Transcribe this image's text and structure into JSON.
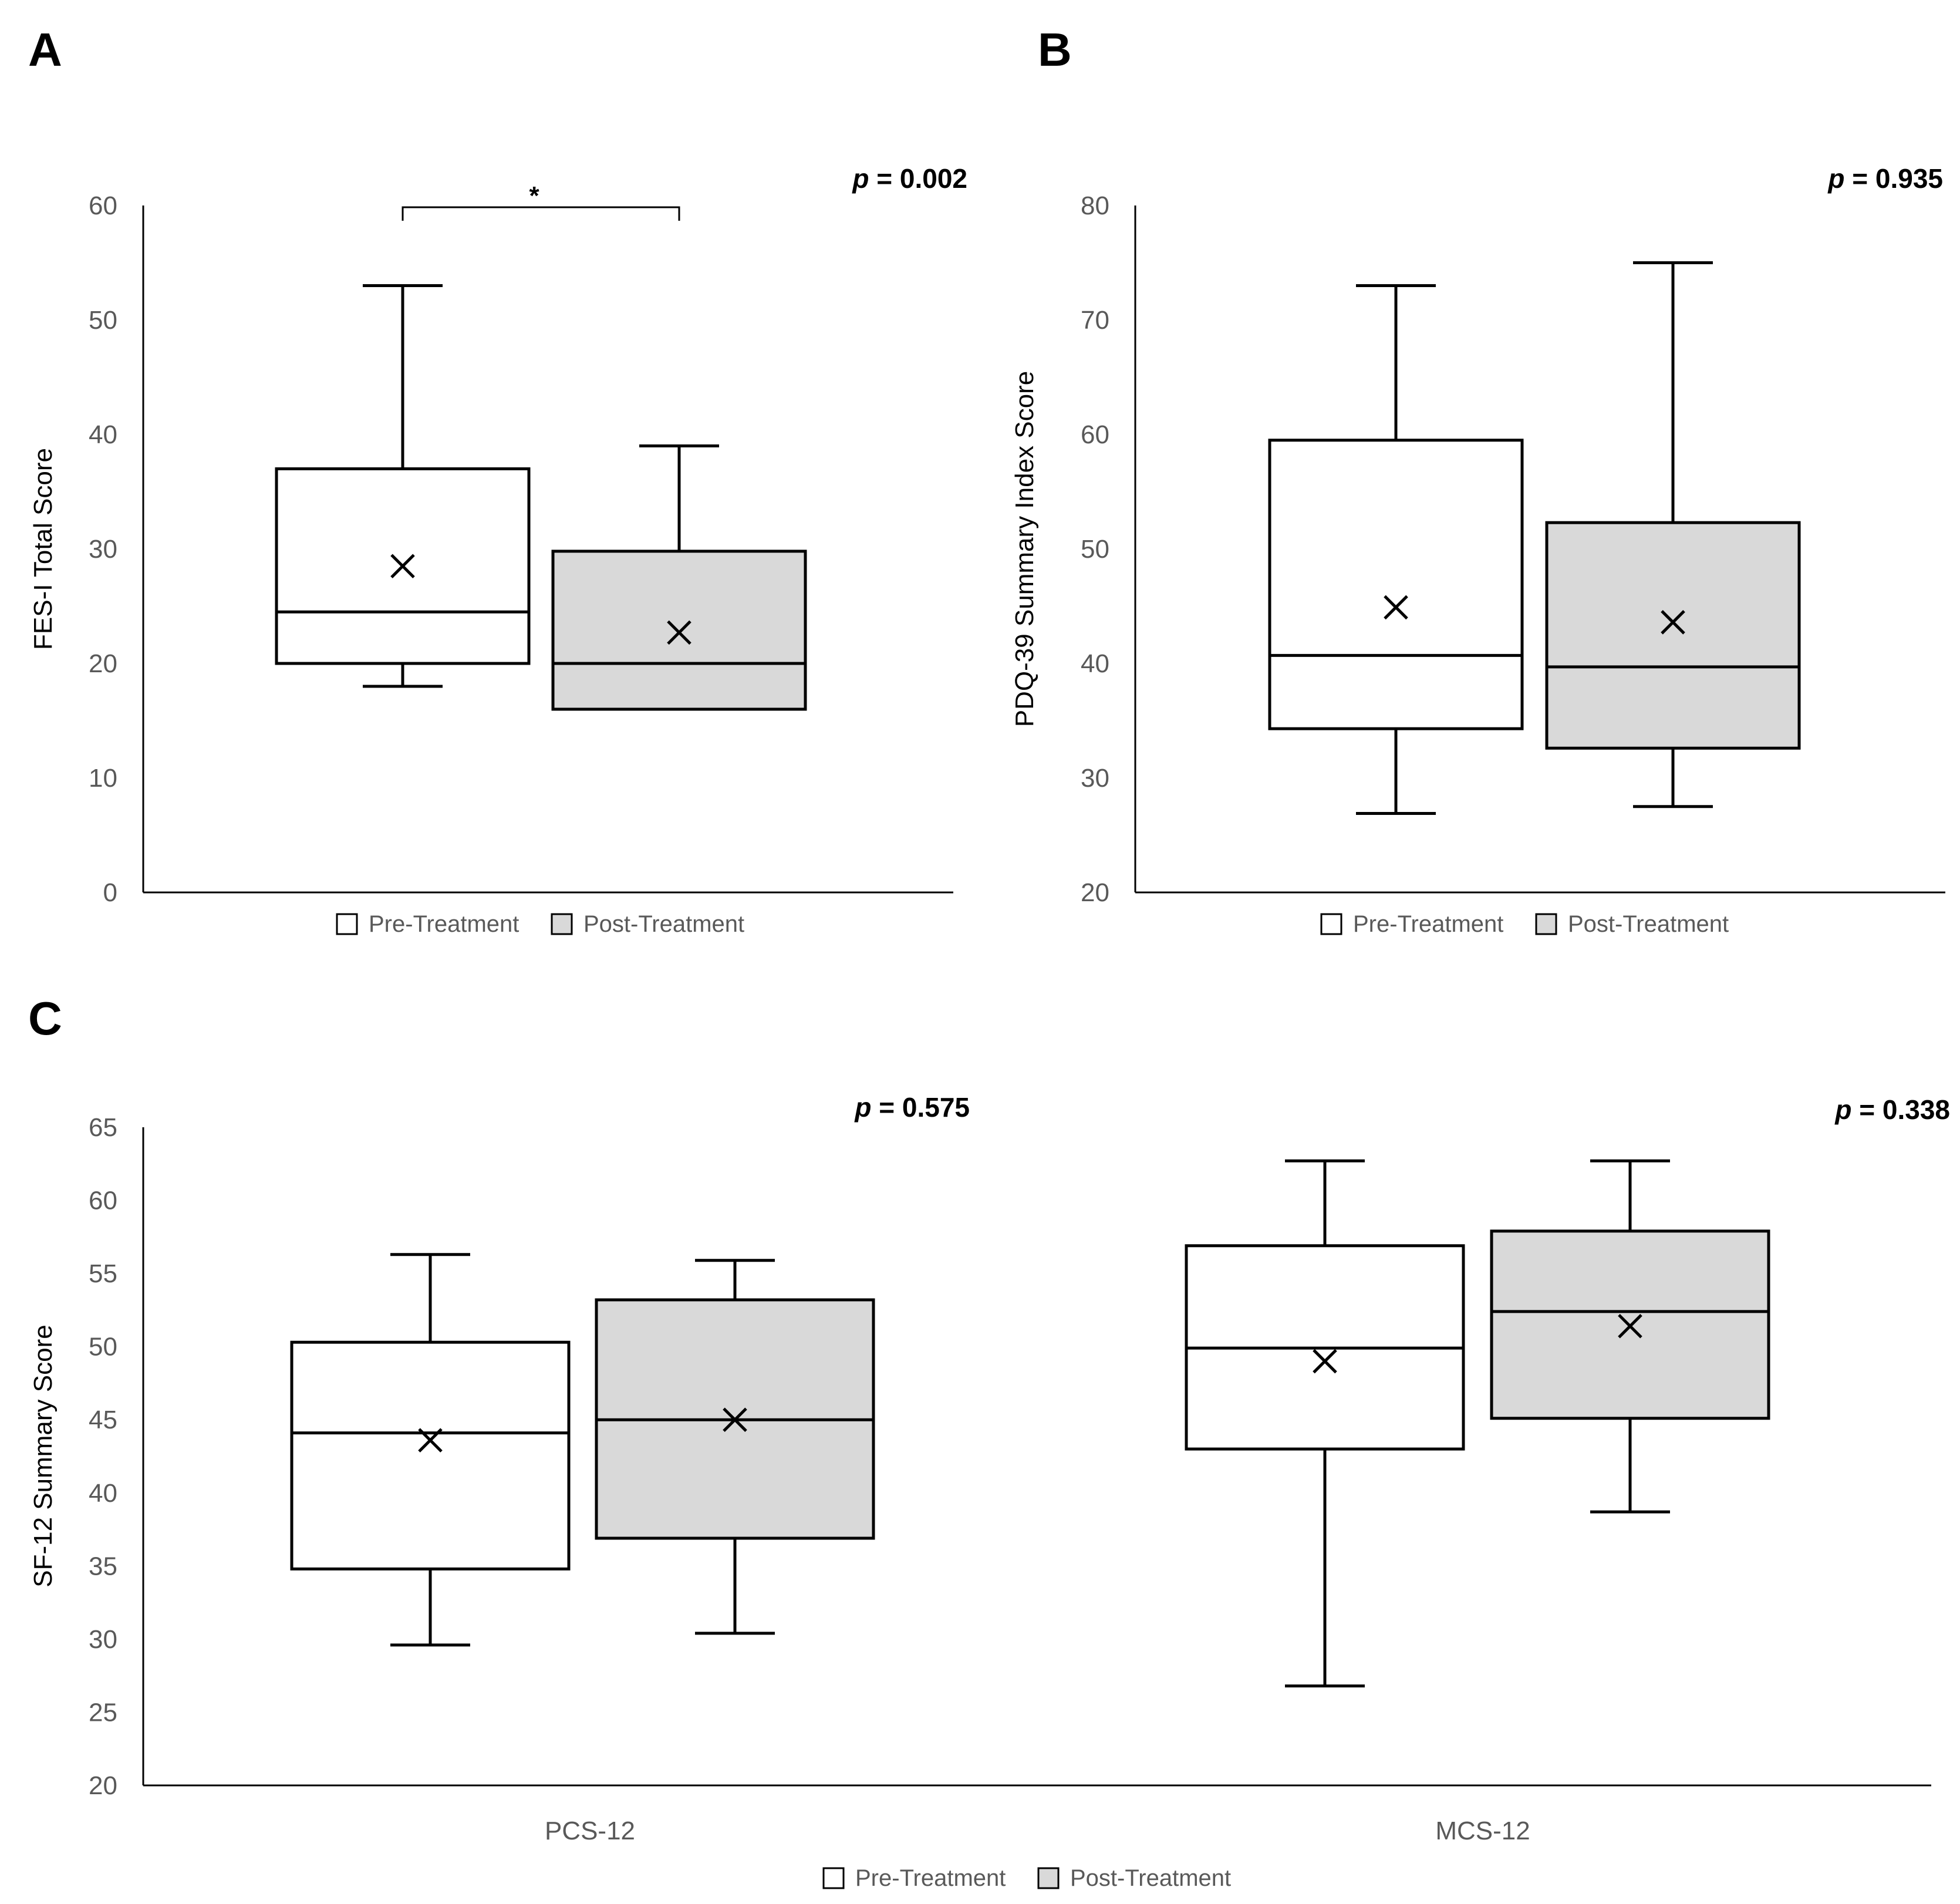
{
  "colors": {
    "pre": "#ffffff",
    "post": "#d9d9d9",
    "stroke": "#000000"
  },
  "legend": [
    "Pre-Treatment",
    "Post-Treatment"
  ],
  "chart_data": [
    {
      "panel": "A",
      "type": "boxplot",
      "ylabel": "FES-I Total Score",
      "ylim": [
        0,
        60
      ],
      "yticks": [
        0,
        10,
        20,
        30,
        40,
        50,
        60
      ],
      "pvalue": {
        "prefix": "p",
        "text": " = 0.002"
      },
      "significance": "*",
      "categories": [
        ""
      ],
      "series": [
        {
          "name": "Pre-Treatment",
          "boxes": [
            {
              "min": 18,
              "q1": 20,
              "median": 24.5,
              "q3": 37,
              "max": 53,
              "mean": 28.5
            }
          ]
        },
        {
          "name": "Post-Treatment",
          "boxes": [
            {
              "min": 16,
              "q1": 16,
              "median": 20,
              "q3": 29.8,
              "max": 39,
              "mean": 22.7
            }
          ]
        }
      ]
    },
    {
      "panel": "B",
      "type": "boxplot",
      "ylabel": "PDQ-39 Summary Index Score",
      "ylim": [
        20,
        80
      ],
      "yticks": [
        20,
        30,
        40,
        50,
        60,
        70,
        80
      ],
      "pvalue": {
        "prefix": "p",
        "text": " = 0.935"
      },
      "categories": [
        ""
      ],
      "series": [
        {
          "name": "Pre-Treatment",
          "boxes": [
            {
              "min": 26.9,
              "q1": 34.3,
              "median": 40.7,
              "q3": 59.5,
              "max": 73,
              "mean": 44.9
            }
          ]
        },
        {
          "name": "Post-Treatment",
          "boxes": [
            {
              "min": 27.5,
              "q1": 32.6,
              "median": 39.7,
              "q3": 52.3,
              "max": 75,
              "mean": 43.6
            }
          ]
        }
      ]
    },
    {
      "panel": "C",
      "type": "boxplot",
      "ylabel": "SF-12 Summary Score",
      "ylim": [
        20,
        65
      ],
      "yticks": [
        20,
        25,
        30,
        35,
        40,
        45,
        50,
        55,
        60,
        65
      ],
      "pvalues": [
        {
          "prefix": "p",
          "text": " = 0.575"
        },
        {
          "prefix": "p",
          "text": " = 0.338"
        }
      ],
      "categories": [
        "PCS-12",
        "MCS-12"
      ],
      "series": [
        {
          "name": "Pre-Treatment",
          "boxes": [
            {
              "min": 29.6,
              "q1": 34.8,
              "median": 44.1,
              "q3": 50.3,
              "max": 56.3,
              "mean": 43.6
            },
            {
              "min": 26.8,
              "q1": 43.0,
              "median": 49.9,
              "q3": 56.9,
              "max": 62.7,
              "mean": 49.0
            }
          ]
        },
        {
          "name": "Post-Treatment",
          "boxes": [
            {
              "min": 30.4,
              "q1": 36.9,
              "median": 45.0,
              "q3": 53.2,
              "max": 55.9,
              "mean": 45.0
            },
            {
              "min": 38.7,
              "q1": 45.1,
              "median": 52.4,
              "q3": 57.9,
              "max": 62.7,
              "mean": 51.4
            }
          ]
        }
      ]
    }
  ]
}
